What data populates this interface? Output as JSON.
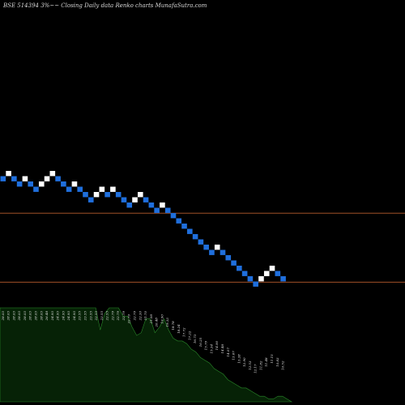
{
  "header": {
    "title": "BSE 514394  3%~~ Closing Daily data  Renko  charts MunafaSutra.com"
  },
  "chart_data": {
    "type": "renko",
    "title": "BSE 514394  3%~~ Closing Daily data  Renko  charts MunafaSutra.com",
    "brick_size_label": "3%",
    "bricks": [
      {
        "dir": "down",
        "label": "28.03"
      },
      {
        "dir": "up",
        "label": "28.03"
      },
      {
        "dir": "down",
        "label": "28.03"
      },
      {
        "dir": "down",
        "label": "28.03"
      },
      {
        "dir": "up",
        "label": "28.03"
      },
      {
        "dir": "down",
        "label": "28.03"
      },
      {
        "dir": "down",
        "label": "28.03"
      },
      {
        "dir": "up",
        "label": "28.03"
      },
      {
        "dir": "up",
        "label": "26.48"
      },
      {
        "dir": "up",
        "label": "24.93"
      },
      {
        "dir": "down",
        "label": "24.93"
      },
      {
        "dir": "down",
        "label": "24.93"
      },
      {
        "dir": "down",
        "label": "24.93"
      },
      {
        "dir": "up",
        "label": "24.93"
      },
      {
        "dir": "down",
        "label": "23.55"
      },
      {
        "dir": "down",
        "label": "23.55"
      },
      {
        "dir": "down",
        "label": "23.55"
      },
      {
        "dir": "up",
        "label": "23.55"
      },
      {
        "dir": "up",
        "label": "23.55"
      },
      {
        "dir": "down",
        "label": "22.55"
      },
      {
        "dir": "up",
        "label": "22.79"
      },
      {
        "dir": "down",
        "label": "22.79"
      },
      {
        "dir": "down",
        "label": "22.79"
      },
      {
        "dir": "down",
        "label": "22.79"
      },
      {
        "dir": "up",
        "label": "22.79"
      },
      {
        "dir": "up",
        "label": "22.30"
      },
      {
        "dir": "down",
        "label": "21.70"
      },
      {
        "dir": "down",
        "label": "21.08"
      },
      {
        "dir": "down",
        "label": "20.48"
      },
      {
        "dir": "up",
        "label": "19.90"
      },
      {
        "dir": "down",
        "label": "19.33"
      },
      {
        "dir": "down",
        "label": "18.78"
      },
      {
        "dir": "down",
        "label": "18.24"
      },
      {
        "dir": "down",
        "label": "17.72"
      },
      {
        "dir": "down",
        "label": "17.22"
      },
      {
        "dir": "down",
        "label": "16.73"
      },
      {
        "dir": "down",
        "label": "16.25"
      },
      {
        "dir": "down",
        "label": "15.79"
      },
      {
        "dir": "down",
        "label": "15.34"
      },
      {
        "dir": "up",
        "label": "14.90"
      },
      {
        "dir": "down",
        "label": "14.48"
      },
      {
        "dir": "down",
        "label": "14.07"
      },
      {
        "dir": "down",
        "label": "13.67"
      },
      {
        "dir": "down",
        "label": "13.28"
      },
      {
        "dir": "down",
        "label": "12.90"
      },
      {
        "dir": "down",
        "label": "12.53"
      },
      {
        "dir": "down",
        "label": "12.17"
      },
      {
        "dir": "up",
        "label": "11.82"
      },
      {
        "dir": "up",
        "label": "11.48"
      },
      {
        "dir": "up",
        "label": "11.15"
      },
      {
        "dir": "down",
        "label": "10.83"
      },
      {
        "dir": "down",
        "label": "10.52"
      }
    ],
    "volume": [
      34,
      34,
      34,
      34,
      34,
      34,
      34,
      34,
      34,
      34,
      34,
      34,
      34,
      34,
      34,
      34,
      34,
      34,
      34,
      34,
      34,
      34,
      26,
      32,
      34,
      34,
      34,
      31,
      31,
      27,
      24,
      25,
      30,
      30,
      25,
      27,
      30,
      26,
      23,
      22,
      22,
      21,
      19,
      18,
      16,
      15,
      14,
      12,
      11,
      10,
      8,
      7,
      6,
      5,
      5,
      4,
      3,
      2,
      2,
      1,
      1,
      2,
      2,
      1,
      0
    ],
    "levels": [
      {
        "value": 28.0
      },
      {
        "value": 11.5
      }
    ],
    "y_range": [
      6.0,
      37.5
    ],
    "volume_range": [
      0,
      100
    ],
    "colors": {
      "up_brick": "#ffffff",
      "down_brick": "#1f6fdd",
      "level_line": "#b85c2c",
      "volume_fill": "#062206",
      "volume_edge": "#2a8a2a",
      "background": "#000000"
    },
    "grid": false,
    "legend": "none"
  }
}
